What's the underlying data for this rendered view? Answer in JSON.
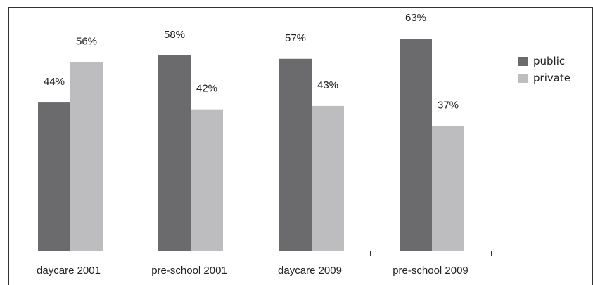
{
  "chart_data": {
    "type": "bar",
    "categories": [
      "daycare 2001",
      "pre-school 2001",
      "daycare 2009",
      "pre-school 2009"
    ],
    "series": [
      {
        "name": "public",
        "values": [
          44,
          58,
          57,
          63
        ],
        "labels": [
          "44%",
          "58%",
          "57%",
          "63%"
        ],
        "color": "#6b6b6e"
      },
      {
        "name": "private",
        "values": [
          56,
          42,
          43,
          37
        ],
        "labels": [
          "56%",
          "42%",
          "43%",
          "37%"
        ],
        "color": "#bdbdc0"
      }
    ],
    "ylim": [
      0,
      80
    ],
    "grid": false,
    "legend_position": "right"
  }
}
